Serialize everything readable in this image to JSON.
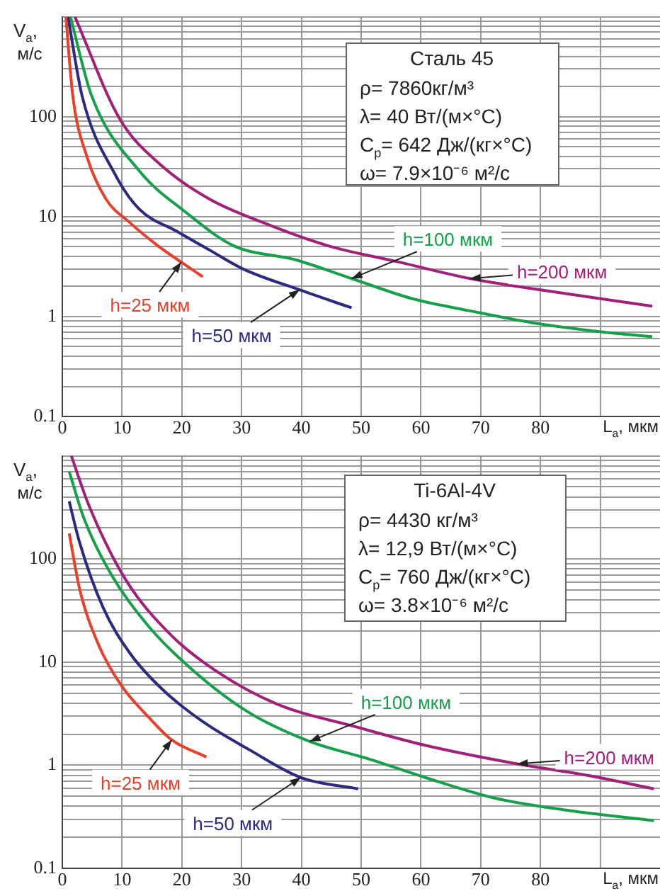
{
  "chart_data": [
    {
      "type": "line",
      "title": "Сталь 45",
      "annotations": [
        "ρ= 7860кг/м³",
        "λ= 40 Вт/(м×°С)",
        "C$_{p}$= 642 Дж/(кг×°С)",
        "ω= 7.9×10⁻⁶ м²/с"
      ],
      "xlabel": "L$_{a}$, мкм",
      "ylabel": "V$_{a}$, м/с",
      "log": "y",
      "grid": true,
      "legend": false,
      "xlim": [
        0,
        100
      ],
      "xticks": [
        0,
        10,
        20,
        30,
        40,
        50,
        60,
        70,
        80,
        {
          "value": 90,
          "label": null
        }
      ],
      "ylim": [
        0.1,
        1000
      ],
      "yticks": [
        {
          "value": 0.1,
          "label": "0.1"
        },
        {
          "value": 0.2,
          "label": null
        },
        {
          "value": 0.3,
          "label": null
        },
        {
          "value": 0.4,
          "label": null
        },
        {
          "value": 0.5,
          "label": null
        },
        {
          "value": 0.6,
          "label": null
        },
        {
          "value": 0.7,
          "label": null
        },
        {
          "value": 0.8,
          "label": null
        },
        {
          "value": 0.9,
          "label": null
        },
        1,
        {
          "value": 2,
          "label": null
        },
        {
          "value": 3,
          "label": null
        },
        {
          "value": 4,
          "label": null
        },
        {
          "value": 5,
          "label": null
        },
        {
          "value": 6,
          "label": null
        },
        {
          "value": 7,
          "label": null
        },
        {
          "value": 8,
          "label": null
        },
        {
          "value": 9,
          "label": null
        },
        10,
        {
          "value": 20,
          "label": null
        },
        {
          "value": 30,
          "label": null
        },
        {
          "value": 40,
          "label": null
        },
        {
          "value": 50,
          "label": null
        },
        {
          "value": 60,
          "label": null
        },
        {
          "value": 70,
          "label": null
        },
        {
          "value": 80,
          "label": null
        },
        {
          "value": 90,
          "label": null
        },
        100,
        {
          "value": 200,
          "label": null
        },
        {
          "value": 300,
          "label": null
        },
        {
          "value": 400,
          "label": null
        },
        {
          "value": 500,
          "label": null
        },
        {
          "value": 600,
          "label": null
        },
        {
          "value": 700,
          "label": null
        },
        {
          "value": 800,
          "label": null
        },
        {
          "value": 900,
          "label": null
        },
        {
          "value": 1000,
          "label": null
        }
      ],
      "series": [
        {
          "name": "h=25 мкм",
          "color": "#e8402a",
          "x": [
            0.6,
            1.75,
            4.1,
            7.3,
            11.2,
            16,
            19.9,
            23.5
          ],
          "values": [
            1000,
            162,
            40,
            15,
            8.8,
            5.1,
            3.5,
            2.5
          ]
        },
        {
          "name": "h=50 мкм",
          "color": "#2b2a80",
          "x": [
            0.95,
            3.3,
            8.9,
            12.8,
            19.2,
            24.7,
            30.2,
            39.7,
            48.4
          ],
          "values": [
            1000,
            162,
            26,
            12,
            7.1,
            4.6,
            3,
            1.85,
            1.22
          ]
        },
        {
          "name": "h=100 мкм",
          "color": "#16a04a",
          "x": [
            1.35,
            4.9,
            12.8,
            20.7,
            28.7,
            39,
            48.4,
            58.7,
            68.2,
            78.5,
            90.4,
            98.7
          ],
          "values": [
            1000,
            162,
            29,
            11,
            5.1,
            3.7,
            2.4,
            1.5,
            1.14,
            0.87,
            0.7,
            0.63
          ]
        },
        {
          "name": "h=200 мкм",
          "color": "#a0207a",
          "x": [
            2.1,
            9.6,
            16.7,
            24.6,
            33.4,
            44.5,
            56.4,
            68.2,
            80,
            98.7
          ],
          "values": [
            1000,
            95,
            32,
            15,
            8.8,
            5.1,
            3.5,
            2.4,
            1.85,
            1.27
          ]
        }
      ]
    },
    {
      "type": "line",
      "title": "Ti-6Al-4V",
      "annotations": [
        "ρ= 4430 кг/м³",
        "λ= 12,9 Вт/(м×°С)",
        "C$_{p}$= 760 Дж/(кг×°С)",
        "ω= 3.8×10⁻⁶ м²/с"
      ],
      "xlabel": "L$_{a}$, мкм",
      "ylabel": "V$_{a}$, м/с",
      "log": "y",
      "grid": true,
      "legend": false,
      "xlim": [
        0,
        100
      ],
      "xticks": [
        0,
        10,
        20,
        30,
        40,
        50,
        60,
        70,
        80,
        {
          "value": 90,
          "label": null
        }
      ],
      "ylim": [
        0.1,
        1000
      ],
      "yticks": [
        {
          "value": 0.1,
          "label": "0.1"
        },
        {
          "value": 0.2,
          "label": null
        },
        {
          "value": 0.3,
          "label": null
        },
        {
          "value": 0.4,
          "label": null
        },
        {
          "value": 0.5,
          "label": null
        },
        {
          "value": 0.6,
          "label": null
        },
        {
          "value": 0.7,
          "label": null
        },
        {
          "value": 0.8,
          "label": null
        },
        {
          "value": 0.9,
          "label": null
        },
        1,
        {
          "value": 2,
          "label": null
        },
        {
          "value": 3,
          "label": null
        },
        {
          "value": 4,
          "label": null
        },
        {
          "value": 5,
          "label": null
        },
        {
          "value": 6,
          "label": null
        },
        {
          "value": 7,
          "label": null
        },
        {
          "value": 8,
          "label": null
        },
        {
          "value": 9,
          "label": null
        },
        10,
        {
          "value": 20,
          "label": null
        },
        {
          "value": 30,
          "label": null
        },
        {
          "value": 40,
          "label": null
        },
        {
          "value": 50,
          "label": null
        },
        {
          "value": 60,
          "label": null
        },
        {
          "value": 70,
          "label": null
        },
        {
          "value": 80,
          "label": null
        },
        {
          "value": 90,
          "label": null
        },
        100,
        {
          "value": 200,
          "label": null
        },
        {
          "value": 300,
          "label": null
        },
        {
          "value": 400,
          "label": null
        },
        {
          "value": 500,
          "label": null
        },
        {
          "value": 600,
          "label": null
        },
        {
          "value": 700,
          "label": null
        },
        {
          "value": 800,
          "label": null
        },
        {
          "value": 900,
          "label": null
        },
        {
          "value": 1000,
          "label": null
        }
      ],
      "series": [
        {
          "name": "h=25 мкм",
          "color": "#e8402a",
          "x": [
            1.15,
            2.9,
            6,
            9.9,
            14.5,
            18.3,
            24.1
          ],
          "values": [
            177,
            51,
            15,
            5.9,
            2.9,
            1.76,
            1.2
          ]
        },
        {
          "name": "h=50 мкм",
          "color": "#2b2a80",
          "x": [
            1.15,
            2.9,
            6.8,
            11.4,
            16.8,
            23.7,
            31.4,
            39.9,
            49.5
          ],
          "values": [
            362,
            144,
            34,
            12,
            5.4,
            2.6,
            1.4,
            0.76,
            0.59
          ]
        },
        {
          "name": "h=100 мкм",
          "color": "#16a04a",
          "x": [
            1.15,
            3.7,
            8.3,
            14.5,
            22.2,
            31.4,
            41.4,
            51.5,
            60.7,
            72.3,
            83.8,
            99
          ],
          "values": [
            705,
            240,
            69,
            22,
            8,
            3.2,
            1.7,
            1.14,
            0.76,
            0.48,
            0.37,
            0.29
          ]
        },
        {
          "name": "h=200 мкм",
          "color": "#a0207a",
          "x": [
            1.5,
            4.5,
            10.6,
            18.3,
            26,
            36,
            49.2,
            60.7,
            76.1,
            87.7,
            99
          ],
          "values": [
            1000,
            325,
            63,
            18,
            8,
            3.9,
            2.35,
            1.56,
            1.03,
            0.8,
            0.59
          ]
        }
      ]
    }
  ]
}
